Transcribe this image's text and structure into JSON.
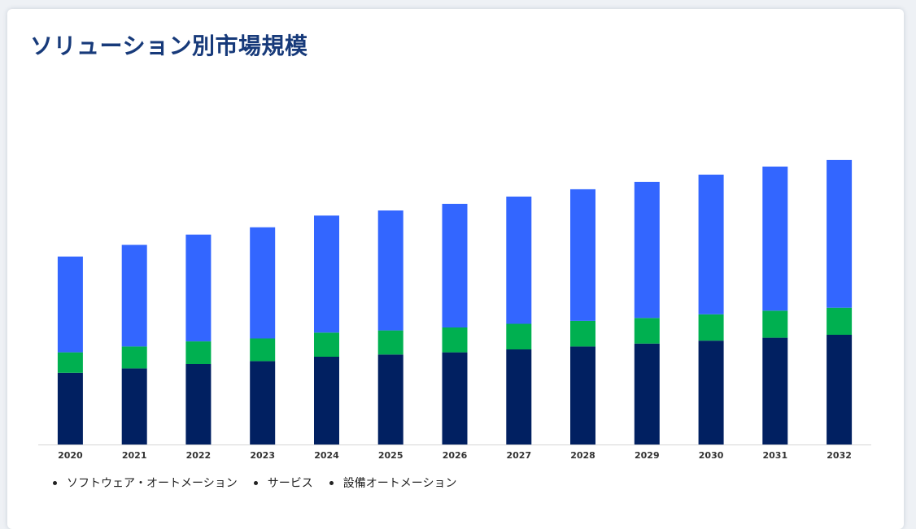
{
  "title": "ソリューション別市場規模",
  "chart_data": {
    "type": "bar",
    "stacked": true,
    "categories": [
      "2020",
      "2021",
      "2022",
      "2023",
      "2024",
      "2025",
      "2026",
      "2027",
      "2028",
      "2029",
      "2030",
      "2031",
      "2032"
    ],
    "series": [
      {
        "name": "ソフトウェア・オートメーション",
        "color": "#012061",
        "values": [
          98,
          104,
          110,
          114,
          120,
          123,
          126,
          130,
          134,
          138,
          142,
          146,
          150
        ]
      },
      {
        "name": "サービス",
        "color": "#00b050",
        "values": [
          28,
          30,
          31,
          31,
          33,
          33,
          34,
          35,
          35,
          35,
          36,
          37,
          37
        ]
      },
      {
        "name": "設備オートメーション",
        "color": "#3366ff",
        "values": [
          131,
          139,
          146,
          152,
          160,
          164,
          169,
          174,
          180,
          186,
          191,
          197,
          202
        ]
      }
    ],
    "legend_position": "bottom-left",
    "grid": false
  }
}
